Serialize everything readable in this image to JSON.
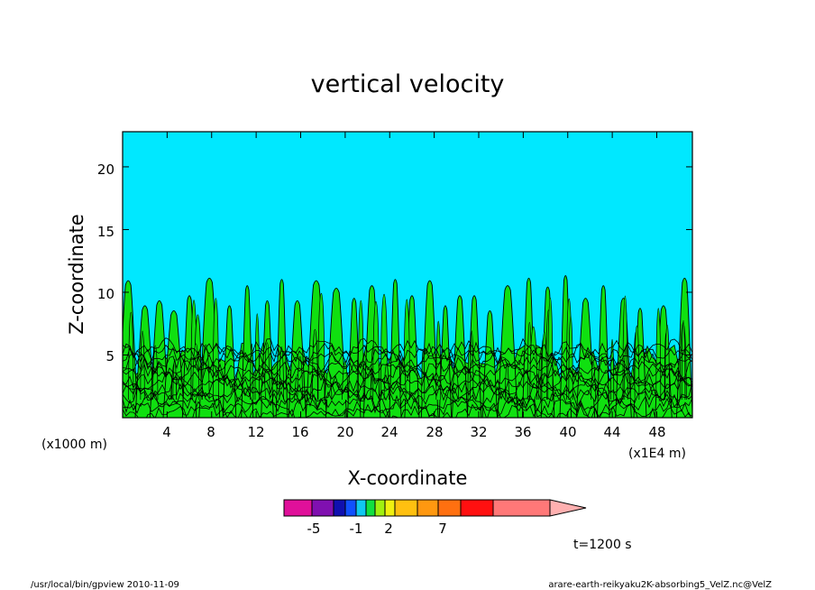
{
  "chart_data": {
    "type": "contour",
    "title": "vertical velocity",
    "xlabel": "X-coordinate",
    "ylabel": "Z-coordinate",
    "x_unit_note": "(x1E4 m)",
    "y_unit_note": "(x1000 m)",
    "xlim": [
      0,
      51.2
    ],
    "ylim": [
      0,
      22.8
    ],
    "x_ticks": [
      4,
      8,
      12,
      16,
      20,
      24,
      28,
      32,
      36,
      40,
      44,
      48
    ],
    "x_tick_labels": [
      "4",
      "8",
      "12",
      "16",
      "20",
      "24",
      "28",
      "32",
      "36",
      "40",
      "44",
      "48"
    ],
    "y_ticks": [
      5,
      10,
      15,
      20
    ],
    "y_tick_labels": [
      "5",
      "10",
      "15",
      "20"
    ],
    "time_label": "t=1200 s",
    "colorbar": {
      "colors": [
        "#e0109a",
        "#8010b0",
        "#1010b0",
        "#1050ff",
        "#10c8f0",
        "#10e040",
        "#a0f010",
        "#f0f010",
        "#ffc010",
        "#ff9810",
        "#ff7010",
        "#ff1010",
        "#ff7878",
        "#ffb0b0"
      ],
      "tick_labels": [
        "-5",
        "-1",
        "2",
        "7"
      ]
    },
    "background_color": "#00e8ff",
    "updraft_color": "#10e010",
    "updraft_tops": [
      {
        "x": 0.5,
        "z": 11.0
      },
      {
        "x": 2.0,
        "z": 9.0
      },
      {
        "x": 3.3,
        "z": 9.4
      },
      {
        "x": 4.6,
        "z": 8.6
      },
      {
        "x": 6.0,
        "z": 9.8
      },
      {
        "x": 7.8,
        "z": 11.2
      },
      {
        "x": 9.6,
        "z": 9.0
      },
      {
        "x": 11.2,
        "z": 10.6
      },
      {
        "x": 13.0,
        "z": 9.4
      },
      {
        "x": 14.3,
        "z": 11.1
      },
      {
        "x": 15.7,
        "z": 9.4
      },
      {
        "x": 17.4,
        "z": 11.0
      },
      {
        "x": 19.2,
        "z": 10.4
      },
      {
        "x": 20.8,
        "z": 9.6
      },
      {
        "x": 22.4,
        "z": 10.6
      },
      {
        "x": 24.5,
        "z": 11.1
      },
      {
        "x": 26.0,
        "z": 9.8
      },
      {
        "x": 27.6,
        "z": 11.0
      },
      {
        "x": 29.0,
        "z": 9.0
      },
      {
        "x": 30.3,
        "z": 9.8
      },
      {
        "x": 31.6,
        "z": 9.8
      },
      {
        "x": 33.0,
        "z": 8.6
      },
      {
        "x": 34.6,
        "z": 10.6
      },
      {
        "x": 36.5,
        "z": 11.2
      },
      {
        "x": 38.2,
        "z": 10.5
      },
      {
        "x": 39.8,
        "z": 11.4
      },
      {
        "x": 41.6,
        "z": 9.6
      },
      {
        "x": 43.2,
        "z": 10.6
      },
      {
        "x": 45.0,
        "z": 9.6
      },
      {
        "x": 46.5,
        "z": 8.8
      },
      {
        "x": 48.6,
        "z": 9.0
      },
      {
        "x": 50.5,
        "z": 11.2
      }
    ]
  },
  "footer": {
    "left": "/usr/local/bin/gpview   2010-11-09",
    "right": "arare-earth-reikyaku2K-absorbing5_VelZ.nc@VelZ"
  }
}
